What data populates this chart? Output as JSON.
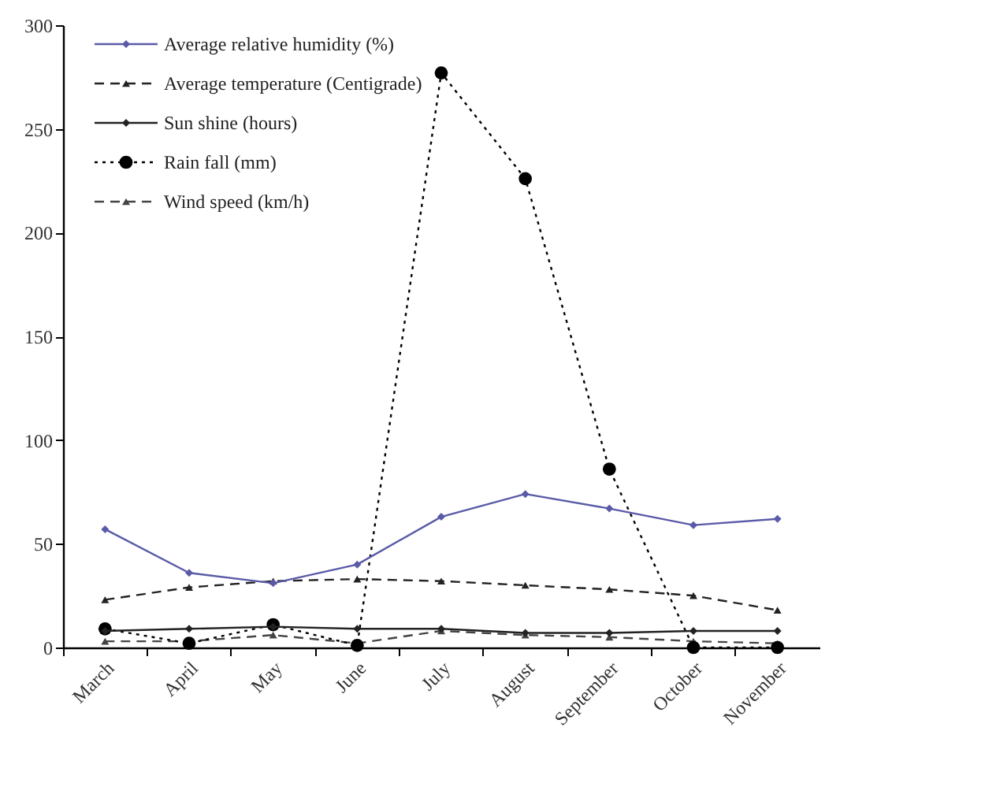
{
  "chart_data": {
    "type": "line",
    "categories": [
      "March",
      "April",
      "May",
      "June",
      "July",
      "August",
      "September",
      "October",
      "November"
    ],
    "series": [
      {
        "name": "Average relative humidity (%)",
        "color": "#5a5aa8",
        "marker": "diamond",
        "line_style": "solid",
        "values": [
          57,
          36,
          31,
          40,
          63,
          74,
          67,
          59,
          62
        ]
      },
      {
        "name": "Average temperature (Centigrade)",
        "color": "#222222",
        "marker": "triangle",
        "line_style": "dashed",
        "values": [
          23,
          29,
          32,
          33,
          32,
          30,
          28,
          25,
          18
        ]
      },
      {
        "name": "Sun shine (hours)",
        "color": "#222222",
        "marker": "diamond",
        "line_style": "solid",
        "values": [
          8,
          9,
          10,
          9,
          9,
          7,
          7,
          8,
          8
        ]
      },
      {
        "name": "Rain fall (mm)",
        "color": "#000000",
        "marker": "circle",
        "line_style": "dotted",
        "values": [
          9,
          2,
          11,
          1,
          277,
          226,
          86,
          0,
          0
        ]
      },
      {
        "name": "Wind speed (km/h)",
        "color": "#444444",
        "marker": "triangle",
        "line_style": "dashed",
        "values": [
          3,
          3,
          6,
          2,
          8,
          6,
          5,
          3,
          2
        ]
      }
    ],
    "ylim": [
      0,
      300
    ],
    "yticks": [
      0,
      50,
      100,
      150,
      200,
      250,
      300
    ],
    "grid": false,
    "legend": "top left"
  }
}
